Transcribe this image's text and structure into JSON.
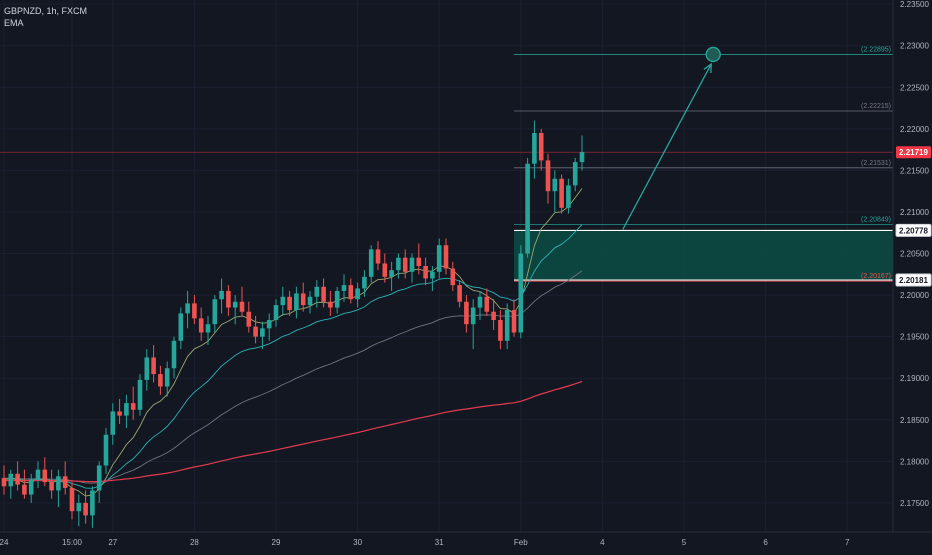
{
  "header": {
    "symbol_line": "GBPNZD, 1h, FXCM",
    "indicator": "EMA"
  },
  "colors": {
    "background": "#131722",
    "up": "#26a69a",
    "down": "#ef5350",
    "ema_fast": "#9aa86e",
    "ema_mid": "#2bb3b5",
    "ema_slow": "#6f7480",
    "ema_200": "#e23b4e",
    "zone_fill": "#0c4a43",
    "target": "#26a69a",
    "current_price_bg": "#f23645"
  },
  "chart_data": {
    "type": "candlestick",
    "y_range": [
      2.1715,
      2.2355
    ],
    "y_ticks": [
      "2.17500",
      "2.18000",
      "2.18500",
      "2.19000",
      "2.19500",
      "2.20000",
      "2.20500",
      "2.21000",
      "2.21500",
      "2.22000",
      "2.22500",
      "2.23000",
      "2.23500"
    ],
    "x_ticks": [
      {
        "label": "24",
        "i": 0
      },
      {
        "label": "15:00",
        "i": 10
      },
      {
        "label": "27",
        "i": 16
      },
      {
        "label": "28",
        "i": 28
      },
      {
        "label": "29",
        "i": 40
      },
      {
        "label": "30",
        "i": 52
      },
      {
        "label": "31",
        "i": 64
      },
      {
        "label": "Feb",
        "i": 76
      },
      {
        "label": "4",
        "i": 88
      },
      {
        "label": "5",
        "i": 100
      },
      {
        "label": "6",
        "i": 112
      },
      {
        "label": "7",
        "i": 124
      }
    ],
    "candles": [
      [
        2.178,
        2.1795,
        2.176,
        2.177
      ],
      [
        2.177,
        2.179,
        2.1755,
        2.1785
      ],
      [
        2.1785,
        2.18,
        2.1765,
        2.1772
      ],
      [
        2.1772,
        2.179,
        2.1755,
        2.176
      ],
      [
        2.176,
        2.1785,
        2.175,
        2.1778
      ],
      [
        2.1778,
        2.18,
        2.1768,
        2.179
      ],
      [
        2.179,
        2.1805,
        2.177,
        2.1775
      ],
      [
        2.1775,
        2.179,
        2.1755,
        2.1765
      ],
      [
        2.1765,
        2.179,
        2.1745,
        2.1782
      ],
      [
        2.1782,
        2.18,
        2.176,
        2.1768
      ],
      [
        2.1768,
        2.1775,
        2.173,
        2.174
      ],
      [
        2.174,
        2.176,
        2.1722,
        2.175
      ],
      [
        2.175,
        2.1765,
        2.1725,
        2.1735
      ],
      [
        2.1735,
        2.177,
        2.172,
        2.1765
      ],
      [
        2.1765,
        2.18,
        2.175,
        2.1795
      ],
      [
        2.1795,
        2.184,
        2.1785,
        2.1832
      ],
      [
        2.1832,
        2.187,
        2.182,
        2.186
      ],
      [
        2.186,
        2.1875,
        2.1845,
        2.1855
      ],
      [
        2.1855,
        2.188,
        2.184,
        2.187
      ],
      [
        2.187,
        2.189,
        2.185,
        2.1862
      ],
      [
        2.1862,
        2.1905,
        2.1855,
        2.1898
      ],
      [
        2.1898,
        2.1935,
        2.1885,
        2.1925
      ],
      [
        2.1925,
        2.194,
        2.1895,
        2.1905
      ],
      [
        2.1905,
        2.1915,
        2.188,
        2.189
      ],
      [
        2.189,
        2.192,
        2.1878,
        2.1912
      ],
      [
        2.1912,
        2.195,
        2.19,
        2.1945
      ],
      [
        2.1945,
        2.1985,
        2.1935,
        2.1978
      ],
      [
        2.1978,
        2.2005,
        2.196,
        2.199
      ],
      [
        2.199,
        2.2,
        2.1965,
        2.1972
      ],
      [
        2.1972,
        2.1985,
        2.1945,
        2.1955
      ],
      [
        2.1955,
        2.1975,
        2.194,
        2.1965
      ],
      [
        2.1965,
        2.2,
        2.1955,
        2.1995
      ],
      [
        2.1995,
        2.202,
        2.1978,
        2.2005
      ],
      [
        2.2005,
        2.2012,
        2.1975,
        2.1985
      ],
      [
        2.1985,
        2.2,
        2.1965,
        2.1992
      ],
      [
        2.1992,
        2.201,
        2.1975,
        2.198
      ],
      [
        2.198,
        2.1992,
        2.1955,
        2.1962
      ],
      [
        2.1962,
        2.1975,
        2.1942,
        2.195
      ],
      [
        2.195,
        2.1968,
        2.1935,
        2.196
      ],
      [
        2.196,
        2.1978,
        2.1945,
        2.197
      ],
      [
        2.197,
        2.1995,
        2.1962,
        2.1988
      ],
      [
        2.1988,
        2.201,
        2.1975,
        2.1998
      ],
      [
        2.1998,
        2.2005,
        2.1975,
        2.1982
      ],
      [
        2.1982,
        2.201,
        2.1972,
        2.2002
      ],
      [
        2.2002,
        2.2015,
        2.198,
        2.1988
      ],
      [
        2.1988,
        2.2005,
        2.1978,
        2.1998
      ],
      [
        2.1998,
        2.2018,
        2.1985,
        2.201
      ],
      [
        2.201,
        2.202,
        2.1985,
        2.1992
      ],
      [
        2.1992,
        2.2005,
        2.1975,
        2.1985
      ],
      [
        2.1985,
        2.201,
        2.1978,
        2.2005
      ],
      [
        2.2005,
        2.2025,
        2.1992,
        2.2012
      ],
      [
        2.2012,
        2.202,
        2.199,
        2.1995
      ],
      [
        2.1995,
        2.2015,
        2.1985,
        2.2008
      ],
      [
        2.2008,
        2.203,
        2.1998,
        2.2022
      ],
      [
        2.2022,
        2.206,
        2.2015,
        2.2055
      ],
      [
        2.2055,
        2.2065,
        2.203,
        2.2038
      ],
      [
        2.2038,
        2.205,
        2.2015,
        2.2022
      ],
      [
        2.2022,
        2.204,
        2.2005,
        2.203
      ],
      [
        2.203,
        2.205,
        2.202,
        2.2045
      ],
      [
        2.2045,
        2.2055,
        2.202,
        2.2028
      ],
      [
        2.2028,
        2.205,
        2.2015,
        2.2045
      ],
      [
        2.2045,
        2.2062,
        2.2025,
        2.2035
      ],
      [
        2.2035,
        2.2045,
        2.2012,
        2.202
      ],
      [
        2.202,
        2.2035,
        2.2005,
        2.2028
      ],
      [
        2.2028,
        2.2068,
        2.202,
        2.206
      ],
      [
        2.206,
        2.2068,
        2.2025,
        2.2032
      ],
      [
        2.2032,
        2.204,
        2.2005,
        2.2012
      ],
      [
        2.2012,
        2.2018,
        2.1985,
        2.1992
      ],
      [
        2.1992,
        2.2,
        2.1955,
        2.1965
      ],
      [
        2.1965,
        2.1995,
        2.1935,
        2.1985
      ],
      [
        2.1985,
        2.2005,
        2.197,
        2.1998
      ],
      [
        2.1998,
        2.2008,
        2.1975,
        2.198
      ],
      [
        2.198,
        2.1995,
        2.1958,
        2.197
      ],
      [
        2.197,
        2.1982,
        2.1935,
        2.1945
      ],
      [
        2.1945,
        2.199,
        2.1935,
        2.1982
      ],
      [
        2.1982,
        2.1995,
        2.195,
        2.1955
      ],
      [
        2.1955,
        2.206,
        2.1948,
        2.205
      ],
      [
        2.205,
        2.2165,
        2.2045,
        2.2158
      ],
      [
        2.2158,
        2.221,
        2.214,
        2.2195
      ],
      [
        2.2195,
        2.22,
        2.215,
        2.2162
      ],
      [
        2.2162,
        2.217,
        2.211,
        2.2125
      ],
      [
        2.2125,
        2.215,
        2.21,
        2.214
      ],
      [
        2.214,
        2.2145,
        2.2098,
        2.2105
      ],
      [
        2.2105,
        2.214,
        2.2098,
        2.2132
      ],
      [
        2.2132,
        2.2165,
        2.2125,
        2.216
      ],
      [
        2.216,
        2.2192,
        2.215,
        2.2172
      ]
    ],
    "emas": [
      {
        "key": "ema_fast",
        "period": 9
      },
      {
        "key": "ema_mid",
        "period": 21
      },
      {
        "key": "ema_slow",
        "period": 50
      },
      {
        "key": "ema_200",
        "period": 200
      }
    ],
    "levels": [
      {
        "name": "target",
        "value": 2.22895,
        "label": "(2.22895)",
        "color": "#26a69a",
        "x_from": 2.22895
      },
      {
        "name": "resistance",
        "value": 2.22215,
        "label": "(2.22215)",
        "color": "#787b86"
      },
      {
        "name": "mid",
        "value": 2.21531,
        "label": "(2.21531)",
        "color": "#787b86"
      },
      {
        "name": "zone-top",
        "value": 2.20849,
        "label": "(2.20849)",
        "color": "#26a69a"
      },
      {
        "name": "zone-bottom",
        "value": 2.20167,
        "label": "(2.20167)",
        "color": "#ef5350"
      }
    ],
    "zone": {
      "top": 2.20778,
      "bottom": 2.20181
    },
    "price_badges": [
      {
        "name": "current-price",
        "value": 2.21719,
        "label": "2.21719",
        "style": "red"
      },
      {
        "name": "zone-top-price",
        "value": 2.20778,
        "label": "2.20778",
        "style": "white"
      },
      {
        "name": "zone-bottom-price",
        "value": 2.20181,
        "label": "2.20181",
        "style": "white"
      }
    ],
    "projection": {
      "from_i": 91,
      "from_y": 2.2079,
      "to_i": 104,
      "to_y": 2.2278,
      "target_i": 104,
      "target_y": 2.22895
    }
  }
}
